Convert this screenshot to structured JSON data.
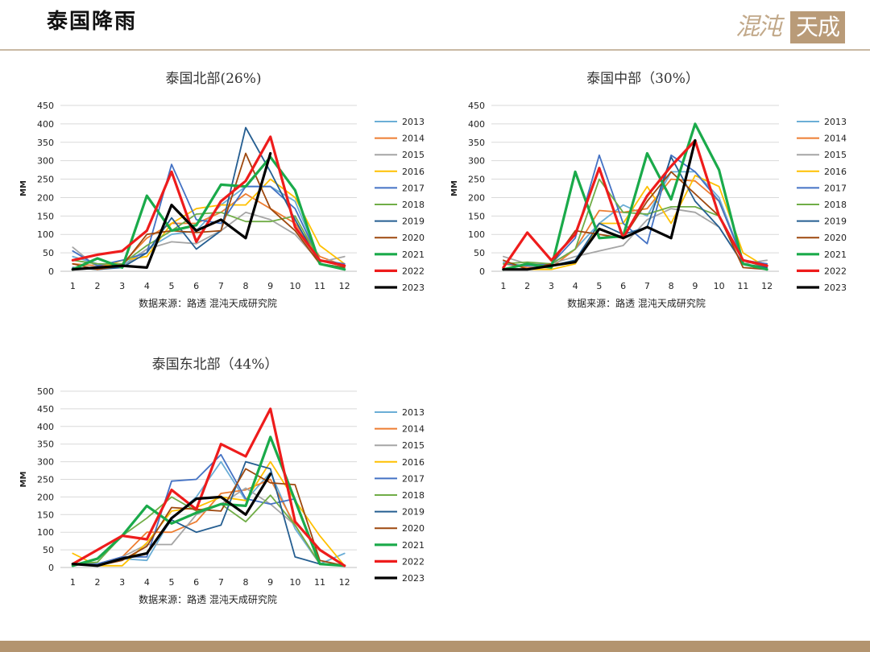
{
  "header": {
    "title": "泰国降雨"
  },
  "logo": {
    "script_text": "混沌",
    "box_text": "天成"
  },
  "chart_data": [
    {
      "type": "line",
      "title": "泰国北部(26%)",
      "ylabel": "MM",
      "source": "数据来源：路透 混沌天成研究院",
      "x": [
        1,
        2,
        3,
        4,
        5,
        6,
        7,
        8,
        9,
        10,
        11,
        12
      ],
      "ylim": [
        0,
        450
      ],
      "yticks": [
        0,
        50,
        100,
        150,
        200,
        250,
        300,
        350,
        400,
        450
      ],
      "grid": true,
      "legend_position": "right",
      "series": [
        {
          "name": "2013",
          "color": "#6baed6",
          "values": [
            40,
            20,
            15,
            60,
            100,
            110,
            180,
            230,
            230,
            190,
            30,
            15
          ]
        },
        {
          "name": "2014",
          "color": "#ed7d31",
          "values": [
            20,
            15,
            20,
            90,
            130,
            130,
            160,
            210,
            170,
            130,
            40,
            15
          ]
        },
        {
          "name": "2015",
          "color": "#a5a5a5",
          "values": [
            65,
            10,
            10,
            60,
            80,
            75,
            110,
            160,
            140,
            100,
            25,
            40
          ]
        },
        {
          "name": "2016",
          "color": "#ffc000",
          "values": [
            10,
            5,
            30,
            40,
            130,
            170,
            180,
            180,
            250,
            200,
            70,
            20
          ]
        },
        {
          "name": "2017",
          "color": "#4472c4",
          "values": [
            55,
            15,
            30,
            50,
            290,
            140,
            130,
            230,
            230,
            170,
            30,
            20
          ]
        },
        {
          "name": "2018",
          "color": "#70ad47",
          "values": [
            30,
            20,
            20,
            70,
            110,
            155,
            160,
            135,
            135,
            150,
            30,
            15
          ]
        },
        {
          "name": "2019",
          "color": "#255e91",
          "values": [
            10,
            5,
            10,
            50,
            145,
            60,
            110,
            390,
            270,
            140,
            20,
            10
          ]
        },
        {
          "name": "2020",
          "color": "#9e480e",
          "values": [
            20,
            5,
            15,
            100,
            110,
            105,
            110,
            320,
            170,
            110,
            20,
            10
          ]
        },
        {
          "name": "2021",
          "color": "#1aaa4a",
          "values": [
            5,
            35,
            10,
            205,
            110,
            125,
            235,
            230,
            310,
            220,
            20,
            5
          ]
        },
        {
          "name": "2022",
          "color": "#ee1c1c",
          "values": [
            30,
            45,
            55,
            110,
            270,
            80,
            190,
            245,
            365,
            120,
            30,
            15
          ]
        },
        {
          "name": "2023",
          "color": "#000000",
          "values": [
            5,
            10,
            15,
            10,
            180,
            110,
            140,
            90,
            320,
            null,
            null,
            null
          ]
        }
      ]
    },
    {
      "type": "line",
      "title": "泰国中部（30%）",
      "ylabel": "MM",
      "source": "数据来源：路透 混沌天成研究院",
      "x": [
        1,
        2,
        3,
        4,
        5,
        6,
        7,
        8,
        9,
        10,
        11,
        12
      ],
      "ylim": [
        0,
        450
      ],
      "yticks": [
        0,
        50,
        100,
        150,
        200,
        250,
        300,
        350,
        400,
        450
      ],
      "grid": true,
      "legend_position": "right",
      "series": [
        {
          "name": "2013",
          "color": "#6baed6",
          "values": [
            25,
            10,
            20,
            60,
            130,
            180,
            150,
            270,
            270,
            200,
            30,
            20
          ]
        },
        {
          "name": "2014",
          "color": "#ed7d31",
          "values": [
            20,
            10,
            10,
            60,
            165,
            160,
            170,
            250,
            245,
            190,
            30,
            10
          ]
        },
        {
          "name": "2015",
          "color": "#a5a5a5",
          "values": [
            40,
            20,
            20,
            40,
            55,
            70,
            140,
            170,
            160,
            120,
            20,
            30
          ]
        },
        {
          "name": "2016",
          "color": "#ffc000",
          "values": [
            5,
            5,
            5,
            20,
            130,
            130,
            230,
            130,
            260,
            230,
            50,
            10
          ]
        },
        {
          "name": "2017",
          "color": "#4472c4",
          "values": [
            20,
            15,
            20,
            90,
            315,
            130,
            75,
            315,
            270,
            190,
            30,
            20
          ]
        },
        {
          "name": "2018",
          "color": "#70ad47",
          "values": [
            20,
            25,
            20,
            60,
            250,
            160,
            155,
            175,
            175,
            150,
            30,
            10
          ]
        },
        {
          "name": "2019",
          "color": "#255e91",
          "values": [
            5,
            5,
            15,
            30,
            130,
            100,
            120,
            310,
            190,
            120,
            20,
            10
          ]
        },
        {
          "name": "2020",
          "color": "#9e480e",
          "values": [
            30,
            5,
            20,
            110,
            100,
            90,
            190,
            270,
            210,
            150,
            10,
            5
          ]
        },
        {
          "name": "2021",
          "color": "#1aaa4a",
          "values": [
            5,
            20,
            10,
            270,
            90,
            95,
            320,
            195,
            400,
            275,
            20,
            5
          ]
        },
        {
          "name": "2022",
          "color": "#ee1c1c",
          "values": [
            10,
            105,
            30,
            100,
            280,
            90,
            205,
            285,
            355,
            150,
            30,
            15
          ]
        },
        {
          "name": "2023",
          "color": "#000000",
          "values": [
            5,
            5,
            15,
            25,
            115,
            90,
            120,
            90,
            355,
            null,
            null,
            null
          ]
        }
      ]
    },
    {
      "type": "line",
      "title": "泰国东北部（44%）",
      "ylabel": "MM",
      "source": "数据来源：路透 混沌天成研究院",
      "x": [
        1,
        2,
        3,
        4,
        5,
        6,
        7,
        8,
        9,
        10,
        11,
        12
      ],
      "ylim": [
        0,
        500
      ],
      "yticks": [
        0,
        50,
        100,
        150,
        200,
        250,
        300,
        350,
        400,
        450,
        500
      ],
      "grid": true,
      "legend_position": "right",
      "series": [
        {
          "name": "2013",
          "color": "#6baed6",
          "values": [
            10,
            5,
            25,
            20,
            140,
            200,
            300,
            190,
            270,
            110,
            10,
            40
          ]
        },
        {
          "name": "2014",
          "color": "#ed7d31",
          "values": [
            10,
            10,
            30,
            100,
            100,
            130,
            210,
            220,
            250,
            120,
            10,
            5
          ]
        },
        {
          "name": "2015",
          "color": "#a5a5a5",
          "values": [
            10,
            10,
            30,
            65,
            65,
            150,
            180,
            225,
            180,
            120,
            10,
            5
          ]
        },
        {
          "name": "2016",
          "color": "#ffc000",
          "values": [
            40,
            5,
            5,
            70,
            160,
            170,
            200,
            190,
            300,
            190,
            90,
            5
          ]
        },
        {
          "name": "2017",
          "color": "#4472c4",
          "values": [
            10,
            10,
            30,
            30,
            245,
            250,
            320,
            195,
            180,
            195,
            10,
            5
          ]
        },
        {
          "name": "2018",
          "color": "#70ad47",
          "values": [
            10,
            15,
            90,
            140,
            200,
            160,
            180,
            130,
            205,
            120,
            10,
            5
          ]
        },
        {
          "name": "2019",
          "color": "#255e91",
          "values": [
            10,
            5,
            25,
            40,
            135,
            100,
            120,
            300,
            280,
            30,
            10,
            5
          ]
        },
        {
          "name": "2020",
          "color": "#9e480e",
          "values": [
            10,
            5,
            20,
            60,
            170,
            165,
            160,
            280,
            240,
            235,
            20,
            5
          ]
        },
        {
          "name": "2021",
          "color": "#1aaa4a",
          "values": [
            5,
            25,
            90,
            175,
            125,
            155,
            180,
            175,
            370,
            190,
            10,
            5
          ]
        },
        {
          "name": "2022",
          "color": "#ee1c1c",
          "values": [
            10,
            50,
            90,
            80,
            220,
            165,
            350,
            315,
            450,
            130,
            50,
            5
          ]
        },
        {
          "name": "2023",
          "color": "#000000",
          "values": [
            10,
            5,
            25,
            40,
            140,
            195,
            200,
            150,
            265,
            null,
            null,
            null
          ]
        }
      ]
    }
  ]
}
